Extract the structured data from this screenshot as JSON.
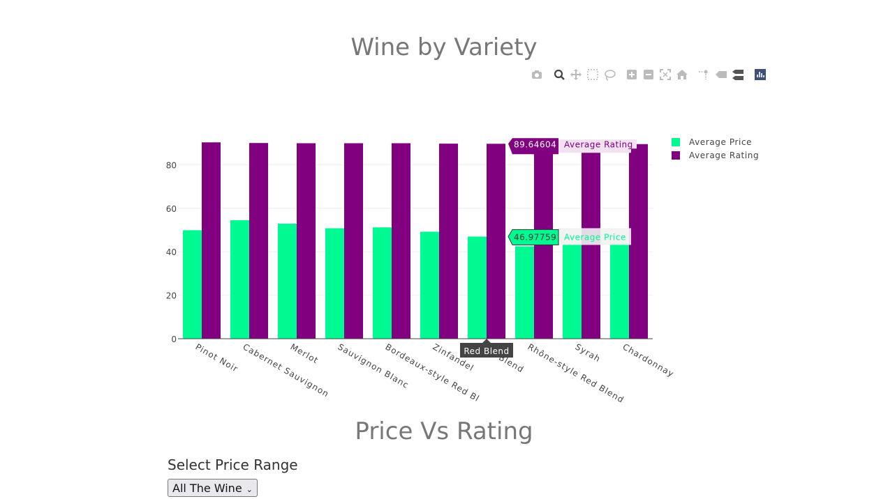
{
  "page": {
    "title": "Wine by Variety",
    "section2_title": "Price Vs Rating",
    "select_label": "Select Price Range",
    "select_value": "All The Wine"
  },
  "modebar": {
    "icons": [
      "camera-icon",
      "zoom-icon",
      "pan-icon",
      "box-select-icon",
      "lasso-select-icon",
      "zoom-in-icon",
      "zoom-out-icon",
      "autoscale-icon",
      "reset-axes-icon",
      "spike-lines-icon",
      "hover-closest-icon",
      "hover-compare-icon",
      "plotly-logo-icon"
    ]
  },
  "chart_data": {
    "type": "bar",
    "title": "Wine by Variety",
    "categories": [
      "Pinot Noir",
      "Cabernet Sauvignon",
      "Merlot",
      "Sauvignon Blanc",
      "Bordeaux-style Red Blend",
      "Zinfandel",
      "Red Blend",
      "Rhône-style Red Blend",
      "Syrah",
      "Chardonnay"
    ],
    "tick_labels_visible": [
      "Pinot Noir",
      "Cabernet Sauvignon",
      "Merlot",
      "Sauvignon Blanc",
      "Bordeaux-style Red Bl",
      "Zinfandel",
      "Red Blend",
      "Rhône-style Red Blend",
      "Syrah",
      "Chardonnay"
    ],
    "series": [
      {
        "name": "Average Price",
        "color": "#00fa92",
        "values": [
          49.9,
          54.5,
          52.9,
          50.8,
          51.2,
          49.2,
          46.97759,
          42.5,
          43.5,
          43.8
        ]
      },
      {
        "name": "Average Rating",
        "color": "#800080",
        "values": [
          90.3,
          90.0,
          89.9,
          89.9,
          89.9,
          89.7,
          89.64604,
          89.5,
          89.4,
          89.5
        ]
      }
    ],
    "ylim": [
      0,
      100
    ],
    "yticks": [
      0,
      20,
      40,
      60,
      80
    ],
    "grid": true,
    "legend": "top-right",
    "hover": {
      "category": "Red Blend",
      "rating_value": "89.64604",
      "rating_name": "Average Rating",
      "price_value": "46.97759",
      "price_name": "Average Price"
    }
  }
}
